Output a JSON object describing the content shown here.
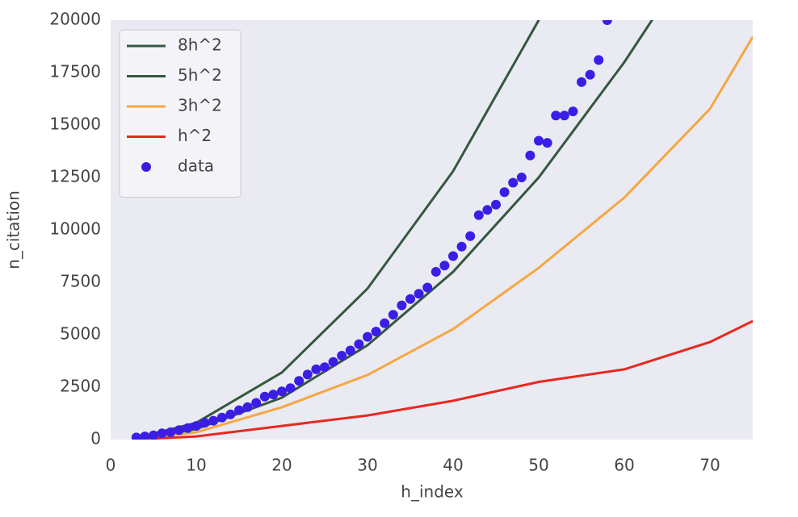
{
  "chart_data": {
    "type": "line",
    "xlabel": "h_index",
    "ylabel": "n_citation",
    "xlim": [
      0,
      75
    ],
    "xticks": [
      0,
      10,
      20,
      30,
      40,
      50,
      60,
      70
    ],
    "ylim": [
      0,
      20000
    ],
    "yticks": [
      0,
      2500,
      5000,
      7500,
      10000,
      12500,
      15000,
      17500,
      20000
    ],
    "grid": false,
    "legend": "upper left",
    "series": [
      {
        "name": "8h^2",
        "type": "line",
        "color": "#35573f",
        "x": [
          3,
          10,
          20,
          30,
          40,
          50,
          51
        ],
        "values": [
          72,
          800,
          3200,
          7200,
          12800,
          20000,
          20808
        ]
      },
      {
        "name": "5h^2",
        "type": "line",
        "color": "#35573f",
        "x": [
          3,
          10,
          20,
          30,
          40,
          50,
          60,
          64
        ],
        "values": [
          45,
          500,
          2000,
          4500,
          8000,
          12500,
          18000,
          20480
        ]
      },
      {
        "name": "3h^2",
        "type": "line",
        "color": "#f5a742",
        "x": [
          3,
          10,
          20,
          30,
          40,
          50,
          60,
          70,
          75
        ],
        "values": [
          30,
          350,
          1540,
          3080,
          5270,
          8190,
          11540,
          15770,
          19200
        ]
      },
      {
        "name": "h^2",
        "type": "line",
        "color": "#e8281e",
        "x": [
          3,
          10,
          20,
          30,
          40,
          50,
          60,
          70,
          75
        ],
        "values": [
          9,
          150,
          650,
          1150,
          1850,
          2750,
          3350,
          4650,
          5650
        ]
      },
      {
        "name": "data",
        "type": "scatter",
        "color": "#3b1ee6",
        "x": [
          3,
          4,
          5,
          6,
          7,
          8,
          9,
          10,
          11,
          12,
          13,
          14,
          15,
          16,
          17,
          18,
          19,
          20,
          21,
          22,
          23,
          24,
          25,
          26,
          27,
          28,
          29,
          30,
          31,
          32,
          33,
          34,
          35,
          36,
          37,
          38,
          39,
          40,
          41,
          42,
          43,
          44,
          45,
          46,
          47,
          48,
          49,
          50,
          51,
          52,
          53,
          54,
          55,
          56,
          57,
          58
        ],
        "values": [
          100,
          150,
          200,
          300,
          350,
          450,
          550,
          650,
          800,
          900,
          1050,
          1200,
          1400,
          1550,
          1750,
          2050,
          2150,
          2300,
          2450,
          2800,
          3100,
          3350,
          3450,
          3700,
          4000,
          4250,
          4550,
          4900,
          5150,
          5550,
          5950,
          6400,
          6700,
          6950,
          7250,
          8000,
          8300,
          8750,
          9200,
          9700,
          10700,
          10950,
          11200,
          11800,
          12250,
          12500,
          13550,
          14250,
          14150,
          15450,
          15450,
          15650,
          17050,
          17400,
          18100,
          20000
        ]
      }
    ]
  }
}
